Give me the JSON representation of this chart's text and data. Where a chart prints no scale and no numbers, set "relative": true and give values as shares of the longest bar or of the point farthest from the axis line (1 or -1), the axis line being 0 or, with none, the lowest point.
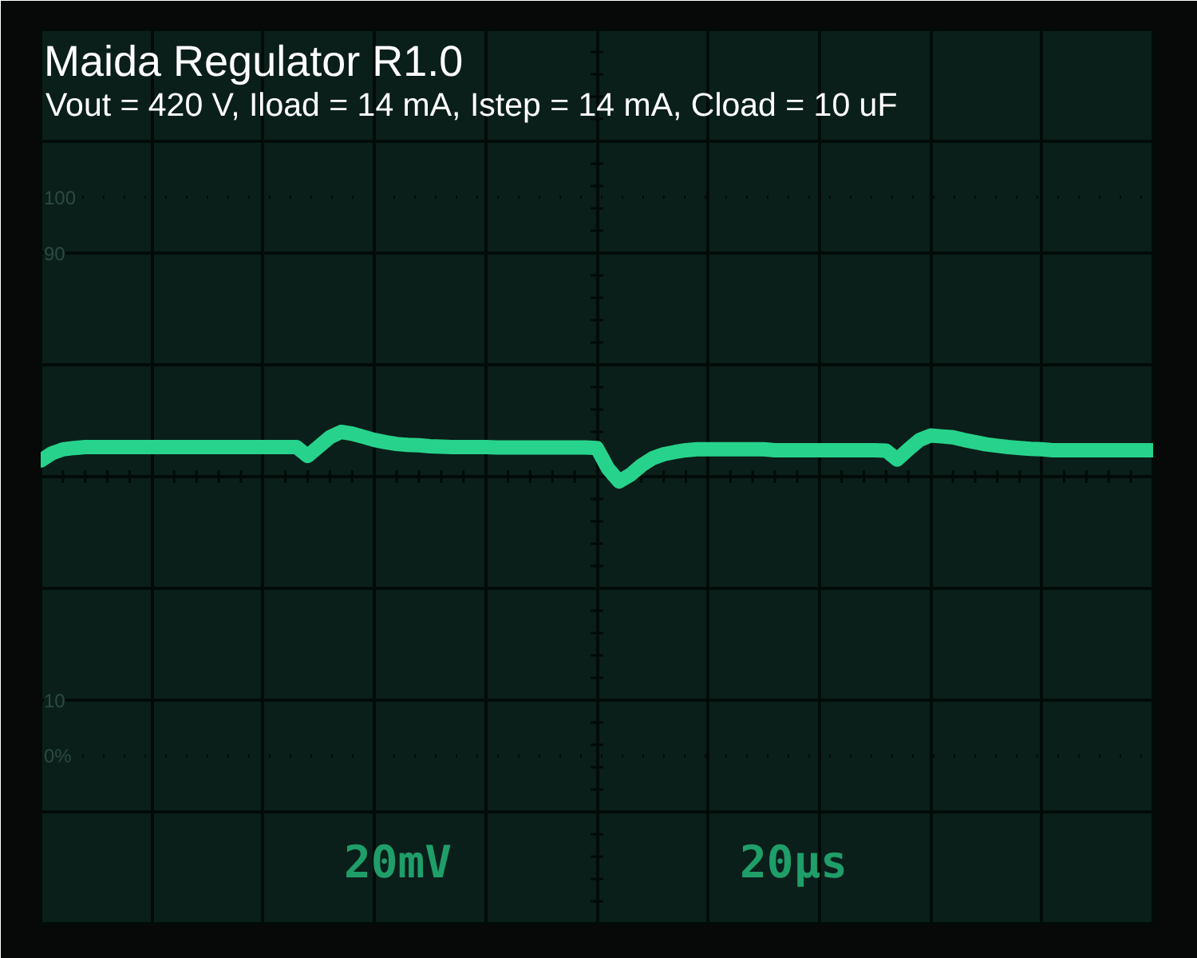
{
  "chart_data": {
    "type": "line",
    "title": "Maida Regulator R1.0",
    "subtitle": "Vout = 420 V, Iload = 14 mA, Istep = 14 mA, Cload = 10 uF",
    "relative": true,
    "tick_labels": false,
    "grid": true,
    "marker": "none",
    "line_style": "solid",
    "categories": [
      null,
      null,
      null,
      null,
      null,
      null,
      null,
      null,
      null,
      null,
      null,
      null,
      null,
      null,
      null,
      null,
      null,
      null,
      null,
      null,
      null,
      null,
      null,
      null,
      null,
      null,
      null,
      null,
      null,
      null,
      null,
      null,
      null,
      null,
      null,
      null,
      null,
      null,
      null,
      null,
      null,
      null,
      null,
      null,
      null,
      null,
      null,
      null,
      null,
      null,
      null,
      null,
      null,
      null,
      null,
      null,
      null,
      null,
      null,
      null,
      null,
      null,
      null,
      null,
      null,
      null,
      null,
      null,
      null,
      null,
      null,
      null,
      null,
      null,
      null,
      null,
      null,
      null,
      null,
      null,
      null,
      null,
      null,
      null,
      null,
      null,
      null,
      null,
      null,
      null,
      null,
      null,
      null,
      null,
      null,
      null,
      null,
      null,
      null,
      null,
      null
    ],
    "series": [
      {
        "color": "#27d38c",
        "values": [
          0.36,
          0.52,
          0.61,
          0.64,
          0.66,
          0.66,
          0.66,
          0.66,
          0.66,
          0.66,
          0.66,
          0.66,
          0.66,
          0.66,
          0.66,
          0.66,
          0.66,
          0.66,
          0.66,
          0.66,
          0.66,
          0.66,
          0.66,
          0.66,
          0.46,
          0.67,
          0.88,
          1.0,
          0.96,
          0.89,
          0.82,
          0.77,
          0.73,
          0.71,
          0.7,
          0.68,
          0.67,
          0.66,
          0.66,
          0.66,
          0.66,
          0.65,
          0.65,
          0.65,
          0.65,
          0.65,
          0.65,
          0.65,
          0.65,
          0.65,
          0.64,
          0.18,
          -0.11,
          0.04,
          0.25,
          0.41,
          0.5,
          0.55,
          0.59,
          0.61,
          0.61,
          0.61,
          0.61,
          0.61,
          0.61,
          0.61,
          0.59,
          0.59,
          0.59,
          0.59,
          0.59,
          0.59,
          0.59,
          0.59,
          0.59,
          0.59,
          0.58,
          0.38,
          0.61,
          0.82,
          0.92,
          0.9,
          0.88,
          0.82,
          0.77,
          0.72,
          0.69,
          0.66,
          0.64,
          0.62,
          0.61,
          0.59,
          0.59,
          0.59,
          0.59,
          0.59,
          0.59,
          0.59,
          0.59,
          0.59,
          0.59
        ]
      }
    ],
    "ref_lines": [
      {
        "axis": "y",
        "value": 6.25,
        "line_style": "dotted"
      },
      {
        "axis": "y",
        "value": 5
      },
      {
        "axis": "y",
        "value": -5
      },
      {
        "axis": "y",
        "value": -6.25,
        "line_style": "dotted"
      }
    ],
    "annotations": [
      {
        "text": "100",
        "y": 6.25
      },
      {
        "text": "90",
        "y": 5
      },
      {
        "text": "10",
        "y": -5
      },
      {
        "text": "0%",
        "y": -6.25
      },
      "20mV",
      "20µs"
    ]
  }
}
